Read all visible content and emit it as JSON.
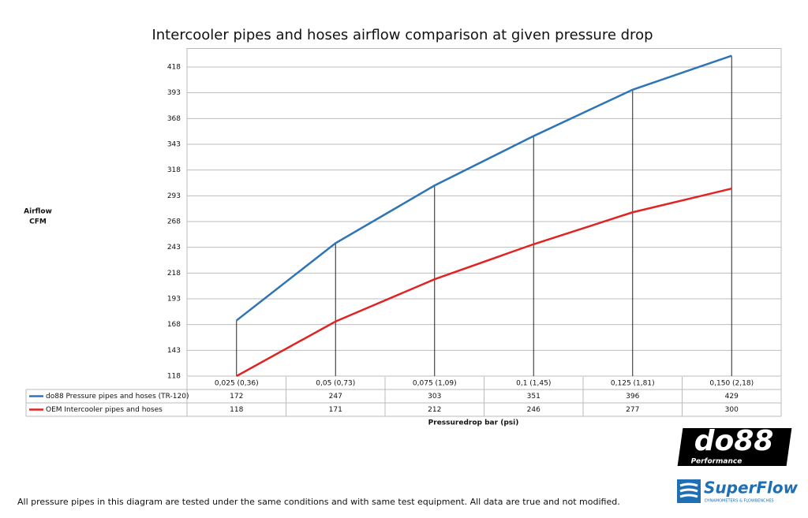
{
  "chart_data": {
    "type": "line",
    "title": "Intercooler pipes and hoses airflow comparison at given pressure drop",
    "y_label": [
      "Airflow",
      "CFM"
    ],
    "x_label": "Pressuredrop bar (psi)",
    "categories": [
      "0,025 (0,36)",
      "0,05 (0,73)",
      "0,075 (1,09)",
      "0,1 (1,45)",
      "0,125 (1,81)",
      "0,150 (2,18)"
    ],
    "series": [
      {
        "name": "do88 Pressure pipes and hoses (TR-120)",
        "color": "#2e75b6",
        "values": [
          172,
          247,
          303,
          351,
          396,
          429
        ]
      },
      {
        "name": "OEM Intercooler pipes and hoses",
        "color": "#e02424",
        "values": [
          118,
          171,
          212,
          246,
          277,
          300
        ]
      }
    ],
    "ylim": [
      118,
      436
    ],
    "yticks": [
      118,
      143,
      168,
      193,
      218,
      243,
      268,
      293,
      318,
      343,
      368,
      393,
      418
    ],
    "grid": true,
    "drop_lines": true,
    "data_table": true
  },
  "footnote": "All pressure pipes in this diagram are tested under the same conditions and with same test equipment. All data are true and not modified.",
  "logos": {
    "do88": "do88",
    "do88_sub": "Performance",
    "superflow": "SuperFlow",
    "superflow_sub": "DYNAMOMETERS & FLOWBENCHES"
  }
}
